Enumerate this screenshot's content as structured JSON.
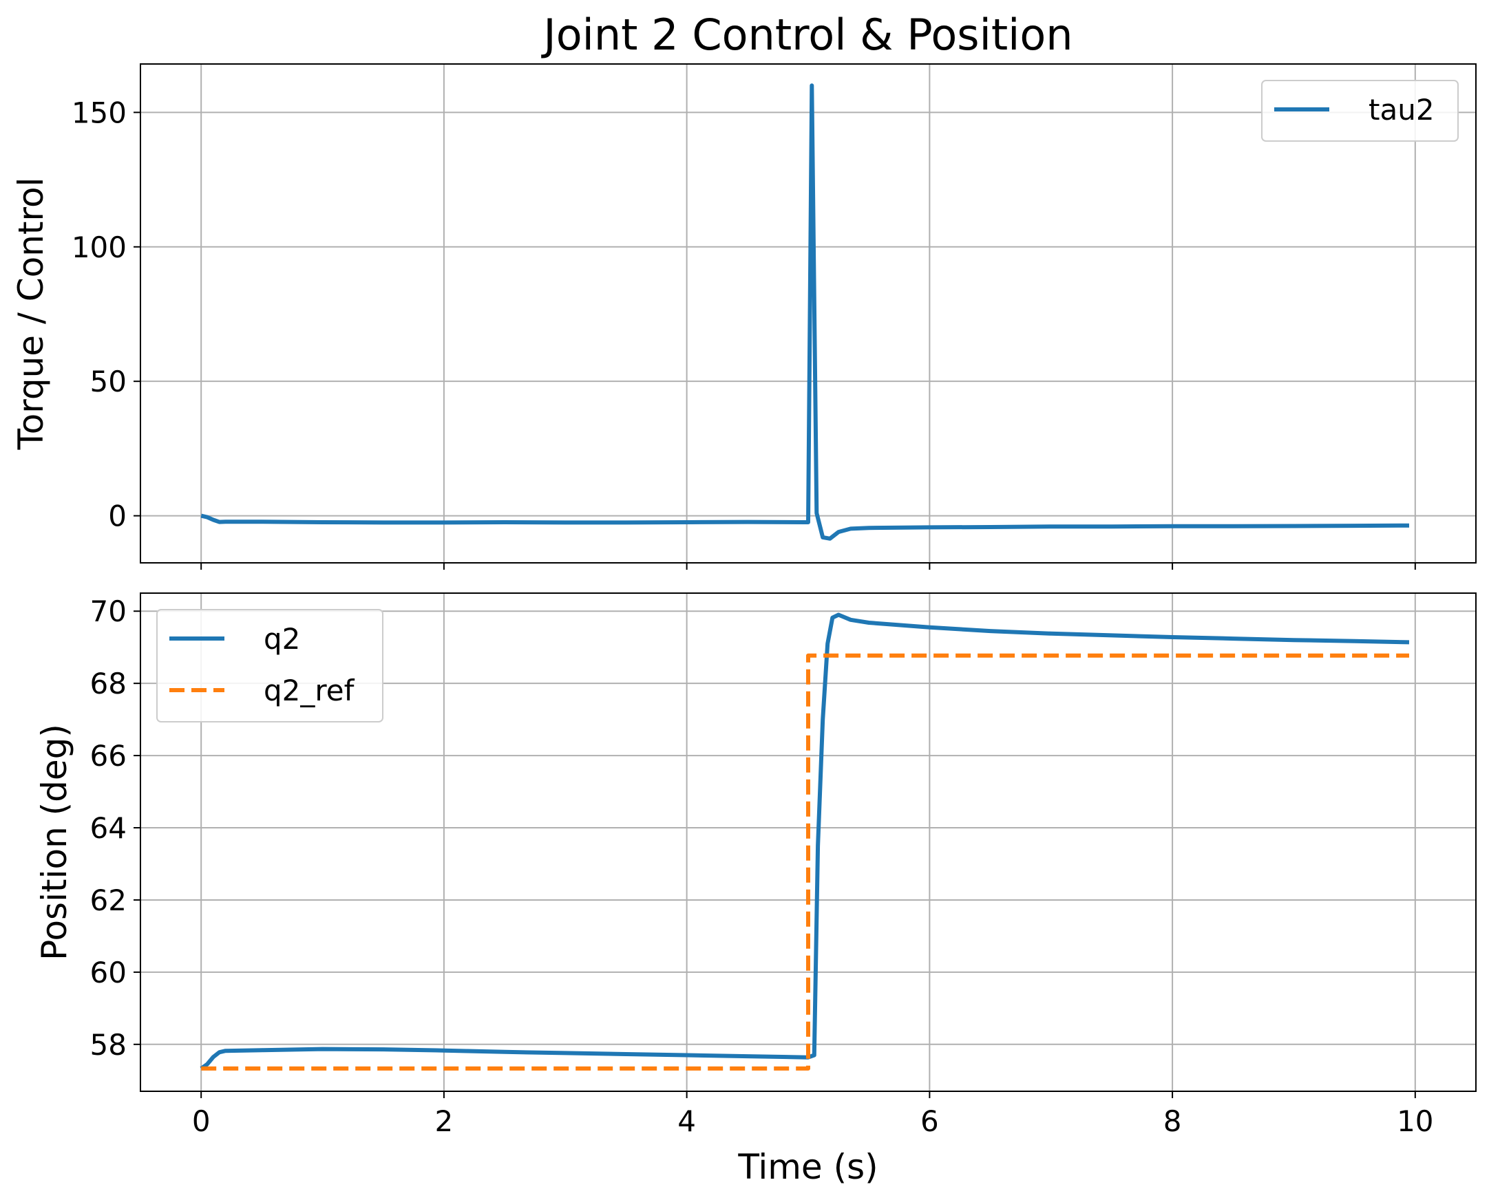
{
  "chart_data": {
    "title": "Joint 2 Control & Position",
    "shared_xlabel": "Time (s)",
    "subplots": [
      {
        "type": "line",
        "ylabel": "Torque / Control",
        "xlim": [
          -0.5,
          10.5
        ],
        "ylim": [
          -17.5,
          168
        ],
        "xticks": [
          0,
          2,
          4,
          6,
          8,
          10
        ],
        "xtick_labels_shown": false,
        "yticks": [
          0,
          50,
          100,
          150
        ],
        "grid": true,
        "legend_position": "top-right",
        "series": [
          {
            "name": "tau2",
            "color": "#1f77b4",
            "style": "solid",
            "x": [
              0,
              0.05,
              0.1,
              0.15,
              0.2,
              0.5,
              1,
              1.5,
              2,
              2.5,
              3,
              3.5,
              4,
              4.5,
              4.97,
              5.0,
              5.03,
              5.07,
              5.12,
              5.18,
              5.25,
              5.35,
              5.5,
              6,
              6.5,
              7,
              7.5,
              8,
              8.5,
              9,
              9.5,
              9.95
            ],
            "y": [
              0,
              -0.5,
              -1.5,
              -2.3,
              -2.2,
              -2.2,
              -2.4,
              -2.5,
              -2.5,
              -2.4,
              -2.5,
              -2.5,
              -2.4,
              -2.3,
              -2.4,
              -2.4,
              160,
              1,
              -8,
              -8.5,
              -6,
              -4.8,
              -4.5,
              -4.3,
              -4.2,
              -4.0,
              -4.0,
              -3.9,
              -3.9,
              -3.8,
              -3.7,
              -3.6
            ]
          }
        ]
      },
      {
        "type": "line",
        "ylabel": "Position (deg)",
        "xlim": [
          -0.5,
          10.5
        ],
        "ylim": [
          56.7,
          70.5
        ],
        "xticks": [
          0,
          2,
          4,
          6,
          8,
          10
        ],
        "xtick_labels_shown": true,
        "yticks": [
          58,
          60,
          62,
          64,
          66,
          68,
          70
        ],
        "grid": true,
        "legend_position": "top-left",
        "series": [
          {
            "name": "q2",
            "color": "#1f77b4",
            "style": "solid",
            "x": [
              0,
              0.05,
              0.1,
              0.15,
              0.2,
              0.5,
              1,
              1.5,
              2,
              2.5,
              3,
              3.5,
              4,
              4.5,
              5.0,
              5.05,
              5.08,
              5.12,
              5.16,
              5.2,
              5.25,
              5.35,
              5.5,
              6,
              6.5,
              7,
              7.5,
              8,
              8.5,
              9,
              9.5,
              9.95
            ],
            "y": [
              57.33,
              57.45,
              57.65,
              57.78,
              57.82,
              57.84,
              57.87,
              57.86,
              57.83,
              57.79,
              57.76,
              57.73,
              57.7,
              57.67,
              57.64,
              57.7,
              63.5,
              67.0,
              69.1,
              69.82,
              69.9,
              69.76,
              69.68,
              69.55,
              69.45,
              69.38,
              69.33,
              69.28,
              69.24,
              69.2,
              69.17,
              69.14
            ]
          },
          {
            "name": "q2_ref",
            "color": "#ff7f0e",
            "style": "dashed",
            "x": [
              0,
              5.0,
              5.0,
              9.95
            ],
            "y": [
              57.33,
              57.33,
              68.77,
              68.77
            ]
          }
        ]
      }
    ]
  }
}
